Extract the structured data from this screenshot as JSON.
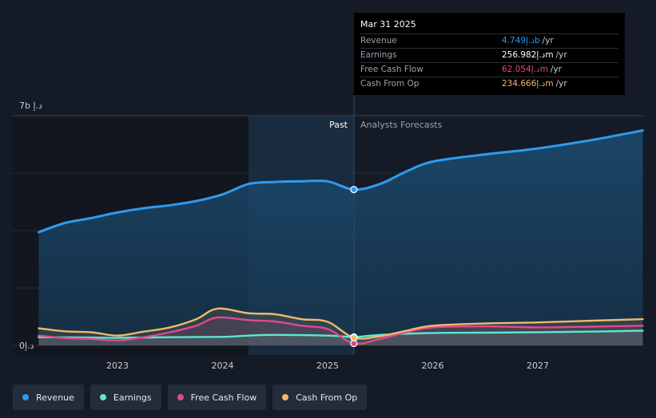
{
  "chart_data": {
    "type": "area",
    "x_ticks": [
      "2023",
      "2024",
      "2025",
      "2026",
      "2027"
    ],
    "y_ticks": [
      "0د.إ",
      "7b د.إ"
    ],
    "ylim": [
      0,
      7
    ],
    "units": "b د.إ",
    "regions": {
      "past_label": "Past",
      "forecast_label": "Analysts Forecasts",
      "divider_x": 2025.25
    },
    "grid": true,
    "series": [
      {
        "name": "Revenue",
        "color": "#2d9bf0",
        "points": [
          [
            2022.25,
            3.45
          ],
          [
            2022.5,
            3.73
          ],
          [
            2022.75,
            3.88
          ],
          [
            2023.0,
            4.05
          ],
          [
            2023.25,
            4.18
          ],
          [
            2023.5,
            4.27
          ],
          [
            2023.75,
            4.4
          ],
          [
            2024.0,
            4.6
          ],
          [
            2024.25,
            4.92
          ],
          [
            2024.5,
            4.98
          ],
          [
            2024.75,
            5.0
          ],
          [
            2025.0,
            5.0
          ],
          [
            2025.25,
            4.749
          ],
          [
            2025.5,
            4.92
          ],
          [
            2025.75,
            5.3
          ],
          [
            2026.0,
            5.6
          ],
          [
            2026.5,
            5.82
          ],
          [
            2027.0,
            6.0
          ],
          [
            2027.5,
            6.25
          ],
          [
            2028.0,
            6.55
          ]
        ]
      },
      {
        "name": "Earnings",
        "color": "#5ee6d1",
        "points": [
          [
            2022.25,
            0.25
          ],
          [
            2022.75,
            0.24
          ],
          [
            2023.0,
            0.23
          ],
          [
            2023.5,
            0.25
          ],
          [
            2024.0,
            0.26
          ],
          [
            2024.25,
            0.3
          ],
          [
            2024.5,
            0.32
          ],
          [
            2025.0,
            0.3
          ],
          [
            2025.25,
            0.257
          ],
          [
            2025.5,
            0.32
          ],
          [
            2026.0,
            0.38
          ],
          [
            2026.5,
            0.39
          ],
          [
            2027.0,
            0.4
          ],
          [
            2027.5,
            0.42
          ],
          [
            2028.0,
            0.45
          ]
        ]
      },
      {
        "name": "Free Cash Flow",
        "color": "#e0498c",
        "points": [
          [
            2022.25,
            0.3
          ],
          [
            2022.5,
            0.22
          ],
          [
            2022.75,
            0.2
          ],
          [
            2023.0,
            0.15
          ],
          [
            2023.25,
            0.25
          ],
          [
            2023.5,
            0.4
          ],
          [
            2023.75,
            0.6
          ],
          [
            2023.95,
            0.85
          ],
          [
            2024.25,
            0.77
          ],
          [
            2024.5,
            0.73
          ],
          [
            2024.75,
            0.6
          ],
          [
            2025.0,
            0.5
          ],
          [
            2025.25,
            0.062
          ],
          [
            2025.5,
            0.2
          ],
          [
            2025.75,
            0.4
          ],
          [
            2026.0,
            0.55
          ],
          [
            2026.5,
            0.58
          ],
          [
            2027.0,
            0.55
          ],
          [
            2027.5,
            0.57
          ],
          [
            2028.0,
            0.6
          ]
        ]
      },
      {
        "name": "Cash From Op",
        "color": "#f0b96a",
        "points": [
          [
            2022.25,
            0.52
          ],
          [
            2022.5,
            0.43
          ],
          [
            2022.75,
            0.4
          ],
          [
            2023.0,
            0.3
          ],
          [
            2023.25,
            0.42
          ],
          [
            2023.5,
            0.55
          ],
          [
            2023.75,
            0.8
          ],
          [
            2023.95,
            1.12
          ],
          [
            2024.25,
            0.98
          ],
          [
            2024.5,
            0.95
          ],
          [
            2024.75,
            0.8
          ],
          [
            2025.0,
            0.72
          ],
          [
            2025.25,
            0.235
          ],
          [
            2025.5,
            0.28
          ],
          [
            2025.75,
            0.45
          ],
          [
            2026.0,
            0.6
          ],
          [
            2026.5,
            0.67
          ],
          [
            2027.0,
            0.7
          ],
          [
            2027.5,
            0.75
          ],
          [
            2028.0,
            0.8
          ]
        ]
      }
    ]
  },
  "tooltip": {
    "date": "Mar 31 2025",
    "rows": [
      {
        "name": "Revenue",
        "value": "4.749د.إb",
        "unit": "/yr",
        "color": "#2d9bf0"
      },
      {
        "name": "Earnings",
        "value": "256.982د.إm",
        "unit": "/yr",
        "color": "#ffffff"
      },
      {
        "name": "Free Cash Flow",
        "value": "62.054د.إm",
        "unit": "/yr",
        "color": "#e0498c"
      },
      {
        "name": "Cash From Op",
        "value": "234.666د.إm",
        "unit": "/yr",
        "color": "#f0b96a"
      }
    ]
  },
  "legend": [
    {
      "label": "Revenue",
      "color": "#2d9bf0"
    },
    {
      "label": "Earnings",
      "color": "#5ee6d1"
    },
    {
      "label": "Free Cash Flow",
      "color": "#e0498c"
    },
    {
      "label": "Cash From Op",
      "color": "#f0b96a"
    }
  ]
}
